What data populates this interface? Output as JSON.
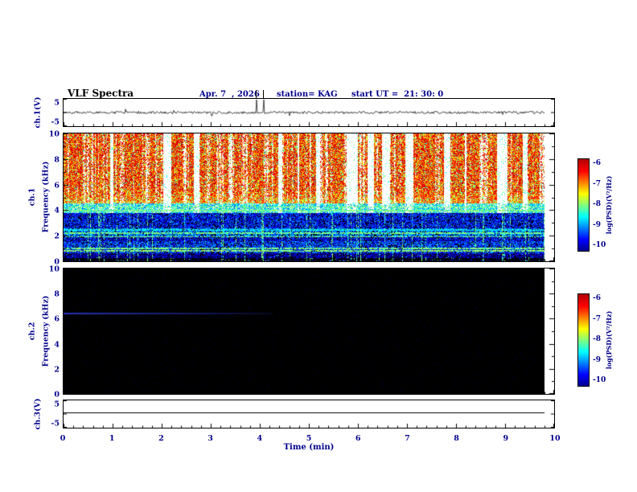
{
  "header": {
    "title": "VLF Spectra",
    "date": "Apr. 7  , 2026",
    "station": "station= KAG",
    "start_ut": "start UT =  21: 30: 0"
  },
  "panels": {
    "ch1_wave": {
      "label": "ch.1(V)",
      "ymax": "5",
      "ymin": "-5"
    },
    "ch1_spec": {
      "channel": "ch.1",
      "axis": "Frequency (kHz)",
      "yticks": [
        "10",
        "8",
        "6",
        "4",
        "2",
        "0"
      ]
    },
    "ch2_spec": {
      "channel": "ch.2",
      "axis": "Frequency (kHz)",
      "yticks": [
        "10",
        "8",
        "6",
        "4",
        "2",
        "0"
      ]
    },
    "ch3_wave": {
      "label": "ch.3(V)",
      "ymax": "5",
      "ymin": "-5"
    }
  },
  "xaxis": {
    "label": "Time (min)",
    "ticks": [
      "0",
      "1",
      "2",
      "3",
      "4",
      "5",
      "6",
      "7",
      "8",
      "9",
      "10"
    ]
  },
  "colorbar": {
    "label": "log(PSD)(V²/Hz)",
    "ticks": [
      "-6",
      "-7",
      "-8",
      "-9",
      "-10"
    ]
  },
  "colors": {
    "annotation": "#00008B",
    "frame": "#000000",
    "spec2_background": "#000000",
    "cmap_top": "#b40000",
    "cmap_bottom": "#00008c"
  },
  "chart_data": [
    {
      "type": "line",
      "title": "ch.1 voltage waveform",
      "xlabel": "Time (min)",
      "ylabel": "ch.1(V)",
      "xlim": [
        0,
        10
      ],
      "ylim": [
        -5,
        5
      ],
      "x_data_end_min": 9.8,
      "mean_V": 0,
      "noise_amplitude_V": 0.5,
      "spikes_at_min": [
        3.92,
        4.07
      ],
      "description": "Dense noisy trace fluctuating around 0 V for the full record with frequent small spikes; two large clipped spikes near 3.9-4.1 min extend above the frame."
    },
    {
      "type": "heatmap",
      "title": "ch.1 VLF spectrogram",
      "xlabel": "Time (min)",
      "ylabel": "Frequency (kHz)",
      "xlim": [
        0,
        10
      ],
      "ylim": [
        0,
        10
      ],
      "zlabel": "log(PSD)(V²/Hz)",
      "zlim": [
        -10,
        -6
      ],
      "x_data_end_min": 9.8,
      "features": [
        "Intense broadband impulsive activity (red/orange/yellow vertical striations, PSD ~ -6 to -7.5) from ~4.5 to 10 kHz over the whole record, with narrow white quiet gaps between striations",
        "Green/cyan transition band around 3.8-4.6 kHz",
        "Blue/black weak background (PSD ~ -9 to -10) below ~3.8 kHz with banded structure",
        "Narrow horizontal green lines near 0.8, 1.0, 1.9, 2.2, 3.9 and 4.2 kHz",
        "Many thin vertical green/cyan impulse lines crossing the low-frequency region",
        "Black band below ~0.3 kHz; data end at ~9.8 min leaving white right margin"
      ]
    },
    {
      "type": "heatmap",
      "title": "ch.2 VLF spectrogram",
      "xlabel": "Time (min)",
      "ylabel": "Frequency (kHz)",
      "xlim": [
        0,
        10
      ],
      "ylim": [
        0,
        10
      ],
      "zlabel": "log(PSD)(V²/Hz)",
      "zlim": [
        -10,
        -6
      ],
      "x_data_end_min": 9.8,
      "features": [
        "Almost no signal: entire panel black (PSD at or below -10)",
        "Faint dark-blue horizontal line near 6.5 kHz from 0 to ~4 min, fading with time",
        "Data end at ~9.8 min leaving white right margin"
      ]
    },
    {
      "type": "line",
      "title": "ch.3 voltage waveform",
      "xlabel": "Time (min)",
      "ylabel": "ch.3(V)",
      "xlim": [
        0,
        10
      ],
      "ylim": [
        -5,
        5
      ],
      "x_data_end_min": 9.8,
      "x": [
        0,
        9.8
      ],
      "y": [
        0.7,
        0.7
      ],
      "description": "Perfectly flat constant line slightly above 0 V (~ +0.7 V) for the full record."
    }
  ]
}
